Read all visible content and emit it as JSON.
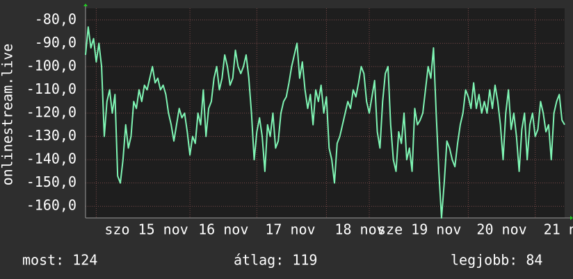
{
  "chart_data": {
    "type": "line",
    "y_label": "onlinestream.live",
    "ylim": [
      -165,
      -75
    ],
    "yticks": [
      {
        "value": -80,
        "label": "-80,0"
      },
      {
        "value": -90,
        "label": "-90,0"
      },
      {
        "value": -100,
        "label": "-100,0"
      },
      {
        "value": -110,
        "label": "-110,0"
      },
      {
        "value": -120,
        "label": "-120,0"
      },
      {
        "value": -130,
        "label": "-130,0"
      },
      {
        "value": -140,
        "label": "-140,0"
      },
      {
        "value": -150,
        "label": "-150,0"
      },
      {
        "value": -160,
        "label": "-160,0"
      }
    ],
    "xlim": [
      0,
      179
    ],
    "xticks": [
      {
        "value": 4,
        "label": "szo 15 nov"
      },
      {
        "value": 39,
        "label": "16 nov"
      },
      {
        "value": 64,
        "label": "17 nov"
      },
      {
        "value": 90,
        "label": "18 nov"
      },
      {
        "value": 106,
        "label": "sze 19 nov"
      },
      {
        "value": 143,
        "label": "20 nov"
      },
      {
        "value": 168,
        "label": "21 no"
      }
    ],
    "grid": true,
    "color": "#7ff5b4",
    "values": [
      -95,
      -83,
      -92,
      -88,
      -98,
      -90,
      -100,
      -130,
      -115,
      -110,
      -120,
      -112,
      -147,
      -150,
      -140,
      -125,
      -135,
      -130,
      -115,
      -118,
      -110,
      -115,
      -108,
      -110,
      -105,
      -100,
      -107,
      -105,
      -110,
      -108,
      -112,
      -120,
      -125,
      -132,
      -125,
      -118,
      -122,
      -120,
      -128,
      -138,
      -130,
      -133,
      -120,
      -125,
      -110,
      -130,
      -118,
      -115,
      -105,
      -100,
      -110,
      -105,
      -95,
      -100,
      -108,
      -105,
      -93,
      -100,
      -103,
      -100,
      -95,
      -105,
      -120,
      -140,
      -128,
      -122,
      -130,
      -145,
      -125,
      -130,
      -120,
      -135,
      -132,
      -120,
      -115,
      -113,
      -107,
      -100,
      -95,
      -90,
      -105,
      -98,
      -110,
      -118,
      -112,
      -125,
      -110,
      -115,
      -108,
      -120,
      -113,
      -135,
      -140,
      -150,
      -133,
      -130,
      -125,
      -120,
      -115,
      -118,
      -110,
      -113,
      -107,
      -100,
      -103,
      -115,
      -120,
      -113,
      -106,
      -128,
      -135,
      -115,
      -103,
      -100,
      -125,
      -140,
      -145,
      -128,
      -133,
      -120,
      -140,
      -135,
      -145,
      -118,
      -125,
      -123,
      -120,
      -110,
      -100,
      -105,
      -92,
      -120,
      -145,
      -165,
      -150,
      -132,
      -135,
      -140,
      -143,
      -133,
      -125,
      -120,
      -110,
      -113,
      -118,
      -107,
      -118,
      -112,
      -120,
      -115,
      -120,
      -110,
      -118,
      -108,
      -115,
      -125,
      -140,
      -120,
      -110,
      -127,
      -120,
      -130,
      -145,
      -127,
      -120,
      -140,
      -125,
      -120,
      -130,
      -127,
      -115,
      -120,
      -128,
      -125,
      -140,
      -120,
      -115,
      -112,
      -123,
      -125
    ]
  },
  "footer": {
    "current": "most: 124",
    "average": "átlag: 119",
    "best": "legjobb: 84"
  }
}
